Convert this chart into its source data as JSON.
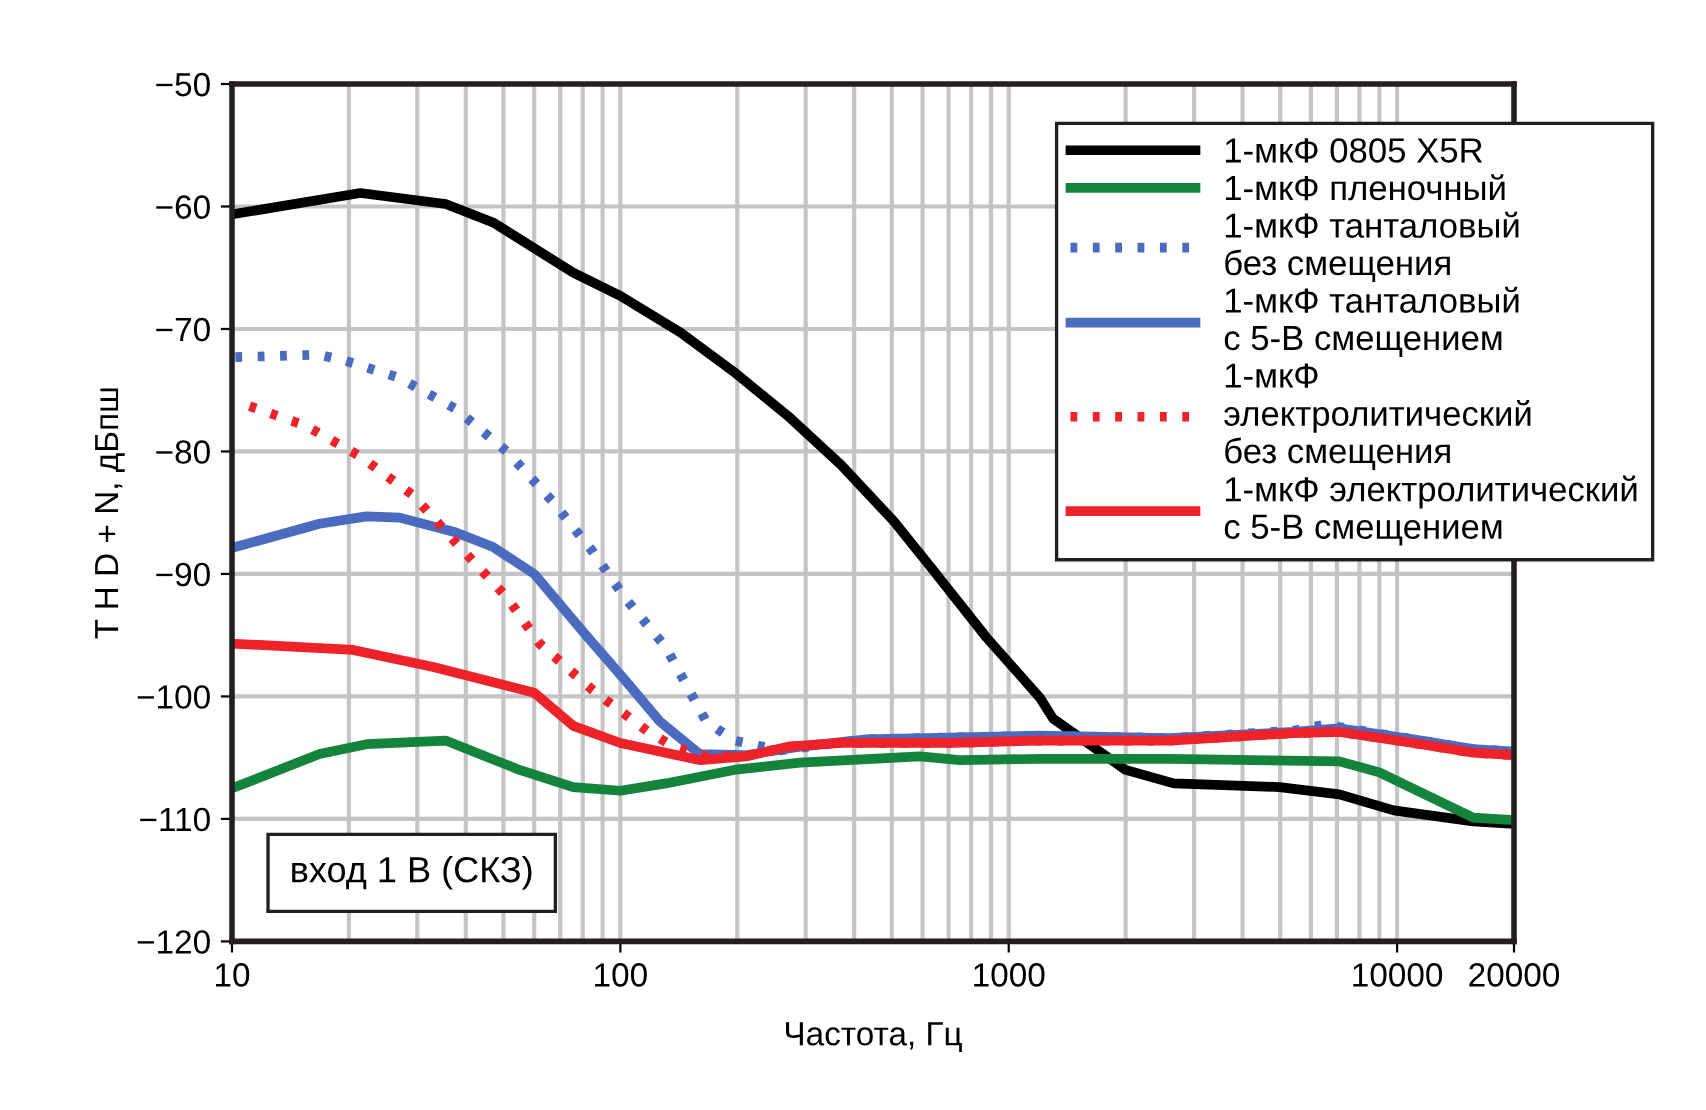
{
  "chart_data": {
    "type": "line",
    "xlabel": "Частота, Гц",
    "ylabel": "T H D + N, дБпш",
    "log": "x",
    "xlim": [
      10,
      20000
    ],
    "ylim": [
      -120,
      -50
    ],
    "xticks": [
      10,
      100,
      1000,
      10000,
      20000
    ],
    "yticks": [
      -120,
      -110,
      -100,
      -90,
      -80,
      -70,
      -60,
      -50
    ],
    "grid": true,
    "legend": "top right",
    "marker": "none",
    "annotations": [
      "вход 1 В (СКЗ)"
    ],
    "series": [
      {
        "name": "1-мкФ 0805 X5R",
        "color": "#000000",
        "line_style": "solid",
        "x": [
          10.2,
          21.4,
          35.5,
          47,
          75.6,
          100,
          143,
          196,
          270,
          370,
          506,
          643,
          877,
          1203,
          1300,
          2000,
          2660,
          4980,
          7100,
          9800,
          15700,
          20000
        ],
        "values": [
          -60.6,
          -58.9,
          -59.8,
          -61.3,
          -65.4,
          -67.3,
          -70.3,
          -73.5,
          -77.1,
          -81.1,
          -85.7,
          -89.8,
          -95.2,
          -100.1,
          -101.8,
          -106,
          -107.1,
          -107.4,
          -108,
          -109.3,
          -110.2,
          -110.4
        ]
      },
      {
        "name": "1-мкФ пленочный",
        "color": "#14843c",
        "line_style": "solid",
        "x": [
          10.2,
          16.8,
          22.2,
          35.5,
          55,
          75.6,
          100,
          131,
          196,
          290,
          590,
          750,
          1200,
          2600,
          7100,
          9000,
          15700,
          20000
        ],
        "values": [
          -107.4,
          -104.7,
          -103.9,
          -103.6,
          -106,
          -107.4,
          -107.7,
          -107.1,
          -106,
          -105.4,
          -104.9,
          -105.2,
          -105.1,
          -105.1,
          -105.3,
          -106.2,
          -109.9,
          -110.1
        ]
      },
      {
        "name": "1-мкФ танталовый\nбез смещения",
        "color": "#4a6bbf",
        "line_style": "dotted",
        "x": [
          10.2,
          16.8,
          19.6,
          27,
          37.6,
          51,
          67,
          85,
          103,
          131,
          166,
          196,
          258,
          430,
          1200,
          2600,
          5400,
          6500,
          7100,
          11000,
          15700,
          20000
        ],
        "values": [
          -72.3,
          -72.1,
          -72.6,
          -74,
          -76.5,
          -80,
          -84.1,
          -88.2,
          -92,
          -96,
          -102,
          -103.6,
          -104.4,
          -103.5,
          -103.2,
          -103.4,
          -102.8,
          -102.3,
          -102.5,
          -103.5,
          -104.3,
          -104.5
        ]
      },
      {
        "name": "1-мкФ танталовый\nс 5-В смещением",
        "color": "#4a6bbf",
        "line_style": "solid",
        "x": [
          10.2,
          16.8,
          22.2,
          27,
          37.6,
          47,
          60,
          81,
          103,
          126,
          160,
          210,
          290,
          430,
          1200,
          2600,
          5400,
          7100,
          11000,
          15700,
          20000
        ],
        "values": [
          -87.8,
          -85.9,
          -85.3,
          -85.4,
          -86.6,
          -87.8,
          -90,
          -94.9,
          -98.7,
          -102,
          -104.7,
          -104.8,
          -104.1,
          -103.5,
          -103.2,
          -103.4,
          -102.9,
          -102.6,
          -103.5,
          -104.3,
          -104.5
        ]
      },
      {
        "name": "1-мкФ\nэлектролитический\nбез смещения",
        "color": "#ee2229",
        "line_style": "dotted",
        "x": [
          11.1,
          15.5,
          21.4,
          29.3,
          38.6,
          51,
          62,
          85,
          117,
          137,
          166,
          210,
          270,
          370,
          720,
          1200,
          2600,
          5400,
          7100,
          11000,
          15700,
          20000
        ],
        "values": [
          -76.3,
          -77.9,
          -80.4,
          -83.6,
          -87.8,
          -91.9,
          -95.7,
          -99.5,
          -102.8,
          -104.1,
          -104.9,
          -104.9,
          -104.1,
          -103.8,
          -103.8,
          -103.6,
          -103.6,
          -103,
          -102.9,
          -103.8,
          -104.6,
          -104.8
        ]
      },
      {
        "name": "1-мкФ электролитический\nс 5-В смещением",
        "color": "#ee2229",
        "line_style": "solid",
        "x": [
          10.2,
          20.5,
          33,
          60,
          75.6,
          100,
          160,
          210,
          270,
          370,
          720,
          1200,
          2600,
          5400,
          7100,
          11000,
          15700,
          20000
        ],
        "values": [
          -95.7,
          -96.2,
          -97.6,
          -99.7,
          -102.4,
          -103.8,
          -105.2,
          -104.9,
          -104.1,
          -103.8,
          -103.8,
          -103.6,
          -103.6,
          -103,
          -102.9,
          -103.8,
          -104.6,
          -104.8
        ]
      }
    ]
  }
}
